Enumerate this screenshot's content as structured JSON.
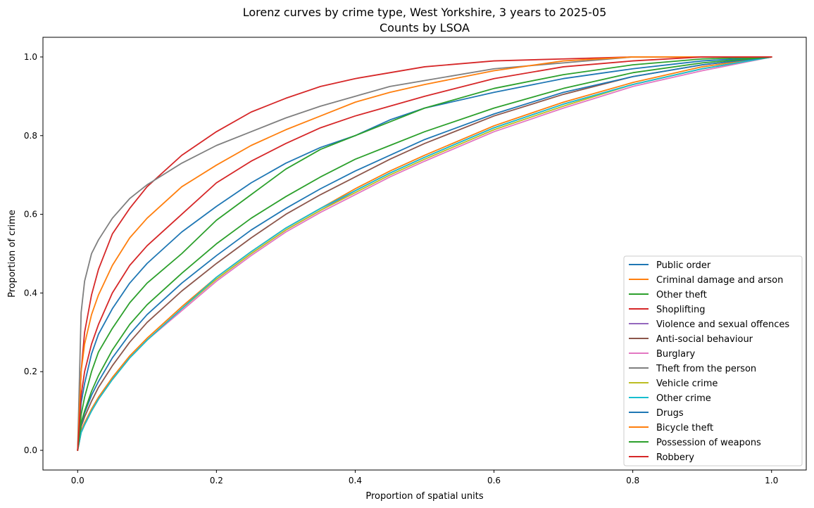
{
  "chart_data": {
    "type": "line",
    "title": "Lorenz curves by crime type, West Yorkshire, 3 years to 2025-05",
    "subtitle": "Counts by LSOA",
    "xlabel": "Proportion of spatial units",
    "ylabel": "Proportion of crime",
    "xlim": [
      -0.05,
      1.05
    ],
    "ylim": [
      -0.05,
      1.05
    ],
    "xticks": [
      0.0,
      0.2,
      0.4,
      0.6,
      0.8,
      1.0
    ],
    "yticks": [
      0.0,
      0.2,
      0.4,
      0.6,
      0.8,
      1.0
    ],
    "xtick_labels": [
      "0.0",
      "0.2",
      "0.4",
      "0.6",
      "0.8",
      "1.0"
    ],
    "ytick_labels": [
      "0.0",
      "0.2",
      "0.4",
      "0.6",
      "0.8",
      "1.0"
    ],
    "grid": false,
    "legend_position": "lower-right",
    "x": [
      0,
      0.005,
      0.01,
      0.02,
      0.03,
      0.05,
      0.075,
      0.1,
      0.15,
      0.2,
      0.25,
      0.3,
      0.35,
      0.4,
      0.45,
      0.5,
      0.6,
      0.7,
      0.8,
      0.9,
      1.0
    ],
    "series": [
      {
        "name": "Public order",
        "color": "#1f77b4",
        "values": [
          0,
          0.12,
          0.17,
          0.245,
          0.295,
          0.36,
          0.425,
          0.475,
          0.555,
          0.62,
          0.68,
          0.73,
          0.77,
          0.8,
          0.84,
          0.87,
          0.91,
          0.945,
          0.97,
          0.99,
          1.0
        ]
      },
      {
        "name": "Criminal damage and arson",
        "color": "#ff7f0e",
        "values": [
          0,
          0.05,
          0.07,
          0.105,
          0.135,
          0.185,
          0.24,
          0.285,
          0.365,
          0.44,
          0.505,
          0.565,
          0.615,
          0.665,
          0.71,
          0.75,
          0.825,
          0.885,
          0.935,
          0.975,
          1.0
        ]
      },
      {
        "name": "Other theft",
        "color": "#2ca02c",
        "values": [
          0,
          0.09,
          0.135,
          0.2,
          0.25,
          0.31,
          0.375,
          0.425,
          0.5,
          0.585,
          0.65,
          0.715,
          0.765,
          0.8,
          0.835,
          0.87,
          0.92,
          0.955,
          0.98,
          0.995,
          1.0
        ]
      },
      {
        "name": "Shoplifting",
        "color": "#d62728",
        "values": [
          0,
          0.2,
          0.3,
          0.395,
          0.46,
          0.55,
          0.615,
          0.67,
          0.75,
          0.81,
          0.86,
          0.895,
          0.925,
          0.945,
          0.96,
          0.975,
          0.99,
          0.995,
          1.0,
          1.0,
          1.0
        ]
      },
      {
        "name": "Violence and sexual offences",
        "color": "#9467bd",
        "values": [
          0,
          0.045,
          0.065,
          0.1,
          0.13,
          0.18,
          0.235,
          0.28,
          0.36,
          0.435,
          0.5,
          0.56,
          0.61,
          0.66,
          0.705,
          0.745,
          0.82,
          0.88,
          0.93,
          0.97,
          1.0
        ]
      },
      {
        "name": "Anti-social behaviour",
        "color": "#8c564b",
        "values": [
          0,
          0.06,
          0.085,
          0.125,
          0.16,
          0.215,
          0.275,
          0.325,
          0.405,
          0.475,
          0.54,
          0.6,
          0.65,
          0.695,
          0.74,
          0.78,
          0.85,
          0.905,
          0.95,
          0.98,
          1.0
        ]
      },
      {
        "name": "Burglary",
        "color": "#e377c2",
        "values": [
          0,
          0.045,
          0.065,
          0.1,
          0.13,
          0.18,
          0.235,
          0.28,
          0.355,
          0.43,
          0.495,
          0.555,
          0.605,
          0.65,
          0.695,
          0.735,
          0.81,
          0.87,
          0.925,
          0.965,
          1.0
        ]
      },
      {
        "name": "Theft from the person",
        "color": "#7f7f7f",
        "values": [
          0,
          0.35,
          0.43,
          0.5,
          0.535,
          0.59,
          0.64,
          0.675,
          0.73,
          0.775,
          0.81,
          0.845,
          0.875,
          0.9,
          0.925,
          0.94,
          0.97,
          0.985,
          1.0,
          1.0,
          1.0
        ]
      },
      {
        "name": "Vehicle crime",
        "color": "#bcbd22",
        "values": [
          0,
          0.045,
          0.065,
          0.1,
          0.13,
          0.18,
          0.235,
          0.28,
          0.36,
          0.435,
          0.5,
          0.56,
          0.61,
          0.655,
          0.7,
          0.74,
          0.815,
          0.875,
          0.93,
          0.97,
          1.0
        ]
      },
      {
        "name": "Other crime",
        "color": "#17becf",
        "values": [
          0,
          0.045,
          0.065,
          0.1,
          0.13,
          0.18,
          0.235,
          0.28,
          0.36,
          0.44,
          0.505,
          0.565,
          0.615,
          0.66,
          0.705,
          0.745,
          0.82,
          0.88,
          0.93,
          0.97,
          1.0
        ]
      },
      {
        "name": "Drugs",
        "color": "#1f77b4",
        "values": [
          0,
          0.065,
          0.095,
          0.14,
          0.175,
          0.235,
          0.295,
          0.345,
          0.425,
          0.495,
          0.56,
          0.615,
          0.665,
          0.71,
          0.75,
          0.79,
          0.855,
          0.91,
          0.95,
          0.98,
          1.0
        ]
      },
      {
        "name": "Bicycle theft",
        "color": "#ff7f0e",
        "values": [
          0,
          0.2,
          0.27,
          0.345,
          0.395,
          0.47,
          0.54,
          0.59,
          0.67,
          0.725,
          0.775,
          0.815,
          0.85,
          0.885,
          0.91,
          0.93,
          0.965,
          0.99,
          1.0,
          1.0,
          1.0
        ]
      },
      {
        "name": "Possession of weapons",
        "color": "#2ca02c",
        "values": [
          0,
          0.07,
          0.1,
          0.15,
          0.19,
          0.255,
          0.32,
          0.37,
          0.45,
          0.525,
          0.59,
          0.645,
          0.695,
          0.74,
          0.775,
          0.81,
          0.87,
          0.92,
          0.96,
          0.985,
          1.0
        ]
      },
      {
        "name": "Robbery",
        "color": "#d62728",
        "values": [
          0,
          0.14,
          0.2,
          0.27,
          0.32,
          0.4,
          0.47,
          0.52,
          0.6,
          0.68,
          0.735,
          0.78,
          0.82,
          0.85,
          0.875,
          0.9,
          0.945,
          0.975,
          0.99,
          1.0,
          1.0
        ]
      }
    ]
  }
}
